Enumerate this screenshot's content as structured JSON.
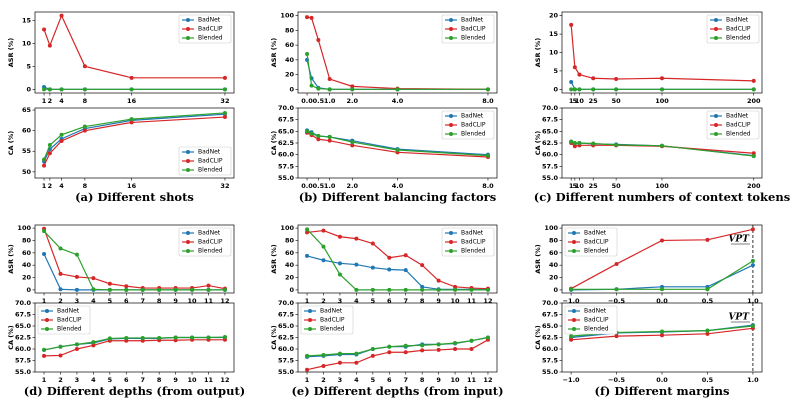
{
  "captions": [
    "(a) Different shots",
    "(b) Different balancing factors",
    "(c) Different numbers of context tokens",
    "(d) Different depths (from output)",
    "(e) Different depths (from input)",
    "(f) Different margins"
  ],
  "chart_data": [
    {
      "type": "line",
      "ylabel": "ASR (%)",
      "x": [
        1,
        2,
        4,
        8,
        16,
        32
      ],
      "xlim": [
        -0.55,
        33.55
      ],
      "xticks": [
        1,
        2,
        4,
        8,
        16,
        32
      ],
      "ylim": [
        -0.8,
        16.8
      ],
      "yticks": [
        0,
        5,
        10,
        15
      ],
      "legend": "upper right",
      "series": [
        {
          "name": "BadNet",
          "color": "#1f77b4",
          "values": [
            0.5,
            0,
            0,
            0,
            0,
            0
          ]
        },
        {
          "name": "BadCLIP",
          "color": "#d62728",
          "values": [
            13,
            9.5,
            16,
            5,
            2.5,
            2.5
          ]
        },
        {
          "name": "Blended",
          "color": "#2ca02c",
          "values": [
            0,
            0,
            0,
            0,
            0,
            0
          ]
        }
      ]
    },
    {
      "type": "line",
      "ylabel": "CA (%)",
      "x": [
        1,
        2,
        4,
        8,
        16,
        32
      ],
      "xlim": [
        -0.55,
        33.55
      ],
      "xticks": [
        1,
        2,
        4,
        8,
        16,
        32
      ],
      "ylim": [
        48.5,
        65.5
      ],
      "yticks": [
        50,
        55,
        60,
        65
      ],
      "legend": "lower right",
      "series": [
        {
          "name": "BadNet",
          "color": "#1f77b4",
          "values": [
            52.5,
            55.5,
            58,
            60.5,
            62.5,
            64
          ]
        },
        {
          "name": "BadCLIP",
          "color": "#d62728",
          "values": [
            51.5,
            54.5,
            57.5,
            60,
            62,
            63.3
          ]
        },
        {
          "name": "Blended",
          "color": "#2ca02c",
          "values": [
            53,
            56.5,
            59,
            61,
            62.8,
            64.3
          ]
        }
      ]
    },
    {
      "type": "line",
      "ylabel": "ASR (%)",
      "x": [
        0,
        0.2,
        0.5,
        1,
        2,
        4,
        8
      ],
      "xlim": [
        -0.4,
        8.4
      ],
      "xticks": [
        {
          "value": 0,
          "label": "0.0"
        },
        {
          "value": 0.5,
          "label": "0.5"
        },
        {
          "value": 1,
          "label": "1.0"
        },
        {
          "value": 2,
          "label": "2.0"
        },
        {
          "value": 4,
          "label": "4.0"
        },
        {
          "value": 8,
          "label": "8.0"
        }
      ],
      "ylim": [
        -5,
        105
      ],
      "yticks": [
        0,
        20,
        40,
        60,
        80,
        100
      ],
      "legend": "upper right",
      "series": [
        {
          "name": "BadNet",
          "color": "#1f77b4",
          "values": [
            40,
            15,
            2,
            0,
            0,
            0,
            0
          ]
        },
        {
          "name": "BadCLIP",
          "color": "#d62728",
          "values": [
            98,
            97,
            67,
            14,
            4,
            1,
            0
          ]
        },
        {
          "name": "Blended",
          "color": "#2ca02c",
          "values": [
            48,
            5,
            1,
            0,
            0,
            0,
            0
          ]
        }
      ]
    },
    {
      "type": "line",
      "ylabel": "CA (%)",
      "x": [
        0,
        0.2,
        0.5,
        1,
        2,
        4,
        8
      ],
      "xlim": [
        -0.4,
        8.4
      ],
      "xticks": [
        {
          "value": 0,
          "label": "0.0"
        },
        {
          "value": 0.5,
          "label": "0.5"
        },
        {
          "value": 1,
          "label": "1.0"
        },
        {
          "value": 2,
          "label": "2.0"
        },
        {
          "value": 4,
          "label": "4.0"
        },
        {
          "value": 8,
          "label": "8.0"
        }
      ],
      "ylim": [
        55,
        70
      ],
      "yticks": [
        {
          "value": 55,
          "label": "55.0"
        },
        {
          "value": 57.5,
          "label": "57.5"
        },
        {
          "value": 60,
          "label": "60.0"
        },
        {
          "value": 62.5,
          "label": "62.5"
        },
        {
          "value": 65,
          "label": "65.0"
        },
        {
          "value": 67.5,
          "label": "67.5"
        },
        {
          "value": 70,
          "label": "70.0"
        }
      ],
      "legend": "upper right",
      "series": [
        {
          "name": "BadNet",
          "color": "#1f77b4",
          "values": [
            65.2,
            64.8,
            64,
            63.8,
            63,
            61.2,
            60
          ]
        },
        {
          "name": "BadCLIP",
          "color": "#d62728",
          "values": [
            64.7,
            64.2,
            63.3,
            63,
            62,
            60.5,
            59.5
          ]
        },
        {
          "name": "Blended",
          "color": "#2ca02c",
          "values": [
            65,
            64.5,
            64,
            63.8,
            62.7,
            61,
            59.8
          ]
        }
      ]
    },
    {
      "type": "line",
      "ylabel": "ASR (%)",
      "x": [
        1,
        5,
        10,
        25,
        50,
        100,
        200
      ],
      "xlim": [
        -9,
        209
      ],
      "xticks": [
        1,
        5,
        10,
        25,
        50,
        100,
        200
      ],
      "ylim": [
        -1,
        21
      ],
      "yticks": [
        0,
        5,
        10,
        15,
        20
      ],
      "legend": "upper right",
      "series": [
        {
          "name": "BadNet",
          "color": "#1f77b4",
          "values": [
            2,
            0,
            0,
            0,
            0,
            0,
            0
          ]
        },
        {
          "name": "BadCLIP",
          "color": "#d62728",
          "values": [
            17.5,
            6,
            4,
            3,
            2.8,
            3,
            2.3
          ]
        },
        {
          "name": "Blended",
          "color": "#2ca02c",
          "values": [
            0,
            0,
            0,
            0,
            0,
            0,
            0
          ]
        }
      ]
    },
    {
      "type": "line",
      "ylabel": "CA (%)",
      "x": [
        1,
        5,
        10,
        25,
        50,
        100,
        200
      ],
      "xlim": [
        -9,
        209
      ],
      "xticks": [
        1,
        5,
        10,
        25,
        50,
        100,
        200
      ],
      "ylim": [
        55,
        70
      ],
      "yticks": [
        {
          "value": 55,
          "label": "55.0"
        },
        {
          "value": 57.5,
          "label": "57.5"
        },
        {
          "value": 60,
          "label": "60.0"
        },
        {
          "value": 62.5,
          "label": "62.5"
        },
        {
          "value": 65,
          "label": "65.0"
        },
        {
          "value": 67.5,
          "label": "67.5"
        },
        {
          "value": 70,
          "label": "70.0"
        }
      ],
      "legend": "upper right",
      "series": [
        {
          "name": "BadNet",
          "color": "#1f77b4",
          "values": [
            62.8,
            62.3,
            62.5,
            62.3,
            62.2,
            61.9,
            59.8
          ]
        },
        {
          "name": "BadCLIP",
          "color": "#d62728",
          "values": [
            62.5,
            61.8,
            62,
            62,
            62,
            61.8,
            60.3
          ]
        },
        {
          "name": "Blended",
          "color": "#2ca02c",
          "values": [
            62.8,
            62.5,
            62.5,
            62.4,
            62.1,
            61.9,
            59.7
          ]
        }
      ]
    },
    {
      "type": "line",
      "ylabel": "ASR (%)",
      "x": [
        1,
        2,
        3,
        4,
        5,
        6,
        7,
        8,
        9,
        10,
        11,
        12
      ],
      "xlim": [
        0.45,
        12.55
      ],
      "xticks": [
        1,
        2,
        3,
        4,
        5,
        6,
        7,
        8,
        9,
        10,
        11,
        12
      ],
      "ylim": [
        -5,
        105
      ],
      "yticks": [
        0,
        20,
        40,
        60,
        80,
        100
      ],
      "legend": "upper right",
      "series": [
        {
          "name": "BadNet",
          "color": "#1f77b4",
          "values": [
            58,
            1,
            0,
            0,
            0,
            0,
            0,
            0,
            0,
            0,
            0,
            0
          ]
        },
        {
          "name": "BadCLIP",
          "color": "#d62728",
          "values": [
            99,
            26,
            21,
            19,
            10,
            6,
            3,
            3,
            3,
            3,
            7,
            2
          ]
        },
        {
          "name": "Blended",
          "color": "#2ca02c",
          "values": [
            95,
            67,
            57,
            1,
            0,
            0,
            0,
            0,
            0,
            0,
            0,
            0
          ]
        }
      ]
    },
    {
      "type": "line",
      "ylabel": "CA (%)",
      "x": [
        1,
        2,
        3,
        4,
        5,
        6,
        7,
        8,
        9,
        10,
        11,
        12
      ],
      "xlim": [
        0.45,
        12.55
      ],
      "xticks": [
        1,
        2,
        3,
        4,
        5,
        6,
        7,
        8,
        9,
        10,
        11,
        12
      ],
      "ylim": [
        55,
        70
      ],
      "yticks": [
        {
          "value": 55,
          "label": "55.0"
        },
        {
          "value": 57.5,
          "label": "57.5"
        },
        {
          "value": 60,
          "label": "60.0"
        },
        {
          "value": 62.5,
          "label": "62.5"
        },
        {
          "value": 65,
          "label": "65.0"
        },
        {
          "value": 67.5,
          "label": "67.5"
        },
        {
          "value": 70,
          "label": "70.0"
        }
      ],
      "legend": "upper left",
      "series": [
        {
          "name": "BadNet",
          "color": "#1f77b4",
          "values": [
            59.8,
            60.5,
            61,
            61.3,
            62.2,
            62.3,
            62.3,
            62.3,
            62.5,
            62.5,
            62.5,
            62.5
          ]
        },
        {
          "name": "BadCLIP",
          "color": "#d62728",
          "values": [
            58.5,
            58.6,
            60,
            60.8,
            61.8,
            61.8,
            61.8,
            61.9,
            61.9,
            62,
            62,
            62
          ]
        },
        {
          "name": "Blended",
          "color": "#2ca02c",
          "values": [
            59.8,
            60.5,
            61,
            61.5,
            62.3,
            62.4,
            62.4,
            62.4,
            62.5,
            62.5,
            62.5,
            62.6
          ]
        }
      ]
    },
    {
      "type": "line",
      "ylabel": "ASR (%)",
      "x": [
        1,
        2,
        3,
        4,
        5,
        6,
        7,
        8,
        9,
        10,
        11,
        12
      ],
      "xlim": [
        0.45,
        12.55
      ],
      "xticks": [
        1,
        2,
        3,
        4,
        5,
        6,
        7,
        8,
        9,
        10,
        11,
        12
      ],
      "ylim": [
        -5,
        105
      ],
      "yticks": [
        0,
        20,
        40,
        60,
        80,
        100
      ],
      "legend": "upper right",
      "series": [
        {
          "name": "BadNet",
          "color": "#1f77b4",
          "values": [
            55,
            48,
            43,
            41,
            36,
            33,
            32,
            5,
            1,
            1,
            1,
            1
          ]
        },
        {
          "name": "BadCLIP",
          "color": "#d62728",
          "values": [
            93,
            96,
            86,
            83,
            75,
            52,
            56,
            40,
            15,
            5,
            3,
            2
          ]
        },
        {
          "name": "Blended",
          "color": "#2ca02c",
          "values": [
            98,
            70,
            25,
            0,
            0,
            0,
            0,
            0,
            0,
            0,
            0,
            0
          ]
        }
      ]
    },
    {
      "type": "line",
      "ylabel": "CA (%)",
      "x": [
        1,
        2,
        3,
        4,
        5,
        6,
        7,
        8,
        9,
        10,
        11,
        12
      ],
      "xlim": [
        0.45,
        12.55
      ],
      "xticks": [
        1,
        2,
        3,
        4,
        5,
        6,
        7,
        8,
        9,
        10,
        11,
        12
      ],
      "ylim": [
        55,
        70
      ],
      "yticks": [
        {
          "value": 55,
          "label": "55.0"
        },
        {
          "value": 57.5,
          "label": "57.5"
        },
        {
          "value": 60,
          "label": "60.0"
        },
        {
          "value": 62.5,
          "label": "62.5"
        },
        {
          "value": 65,
          "label": "65.0"
        },
        {
          "value": 67.5,
          "label": "67.5"
        },
        {
          "value": 70,
          "label": "70.0"
        }
      ],
      "legend": "upper left",
      "series": [
        {
          "name": "BadNet",
          "color": "#1f77b4",
          "values": [
            58.3,
            58.5,
            58.8,
            58.8,
            60,
            60.5,
            60.5,
            61,
            61,
            61.2,
            61.8,
            62.5
          ]
        },
        {
          "name": "BadCLIP",
          "color": "#d62728",
          "values": [
            55.5,
            56.3,
            57,
            57,
            58.5,
            59.3,
            59.3,
            59.7,
            59.8,
            60,
            60,
            62
          ]
        },
        {
          "name": "Blended",
          "color": "#2ca02c",
          "values": [
            58.5,
            58.7,
            59,
            59,
            60,
            60.5,
            60.7,
            60.8,
            61,
            61.3,
            61.8,
            62.5
          ]
        }
      ]
    },
    {
      "type": "line",
      "ylabel": "ASR (%)",
      "x": [
        -1,
        -0.5,
        0,
        0.5,
        1
      ],
      "xlim": [
        -1.1,
        1.1
      ],
      "xticks": [
        {
          "value": -1,
          "label": "−1.0"
        },
        {
          "value": -0.5,
          "label": "−0.5"
        },
        {
          "value": 0,
          "label": "0.0"
        },
        {
          "value": 0.5,
          "label": "0.5"
        },
        {
          "value": 1,
          "label": "1.0"
        }
      ],
      "ylim": [
        -5,
        105
      ],
      "yticks": [
        0,
        20,
        40,
        60,
        80,
        100
      ],
      "legend": "upper left",
      "annotation": {
        "text": "VPT",
        "x": 1
      },
      "series": [
        {
          "name": "BadNet",
          "color": "#1f77b4",
          "values": [
            0,
            1,
            5,
            5,
            40
          ]
        },
        {
          "name": "BadCLIP",
          "color": "#d62728",
          "values": [
            2,
            42,
            80,
            81,
            98
          ]
        },
        {
          "name": "Blended",
          "color": "#2ca02c",
          "values": [
            1,
            1,
            1,
            1,
            47
          ]
        }
      ]
    },
    {
      "type": "line",
      "ylabel": "CA (%)",
      "x": [
        -1,
        -0.5,
        0,
        0.5,
        1
      ],
      "xlim": [
        -1.1,
        1.1
      ],
      "xticks": [
        {
          "value": -1,
          "label": "−1.0"
        },
        {
          "value": -0.5,
          "label": "−0.5"
        },
        {
          "value": 0,
          "label": "0.0"
        },
        {
          "value": 0.5,
          "label": "0.5"
        },
        {
          "value": 1,
          "label": "1.0"
        }
      ],
      "ylim": [
        55,
        70
      ],
      "yticks": [
        {
          "value": 55,
          "label": "55.0"
        },
        {
          "value": 57.5,
          "label": "57.5"
        },
        {
          "value": 60,
          "label": "60.0"
        },
        {
          "value": 62.5,
          "label": "62.5"
        },
        {
          "value": 65,
          "label": "65.0"
        },
        {
          "value": 67.5,
          "label": "67.5"
        },
        {
          "value": 70,
          "label": "70.0"
        }
      ],
      "legend": "upper left",
      "annotation": {
        "text": "VPT",
        "x": 1
      },
      "series": [
        {
          "name": "BadNet",
          "color": "#1f77b4",
          "values": [
            62.5,
            63.5,
            63.7,
            64,
            65.2
          ]
        },
        {
          "name": "BadCLIP",
          "color": "#d62728",
          "values": [
            62,
            62.8,
            63,
            63.3,
            64.5
          ]
        },
        {
          "name": "Blended",
          "color": "#2ca02c",
          "values": [
            62.8,
            63.6,
            63.8,
            64,
            65
          ]
        }
      ]
    }
  ]
}
